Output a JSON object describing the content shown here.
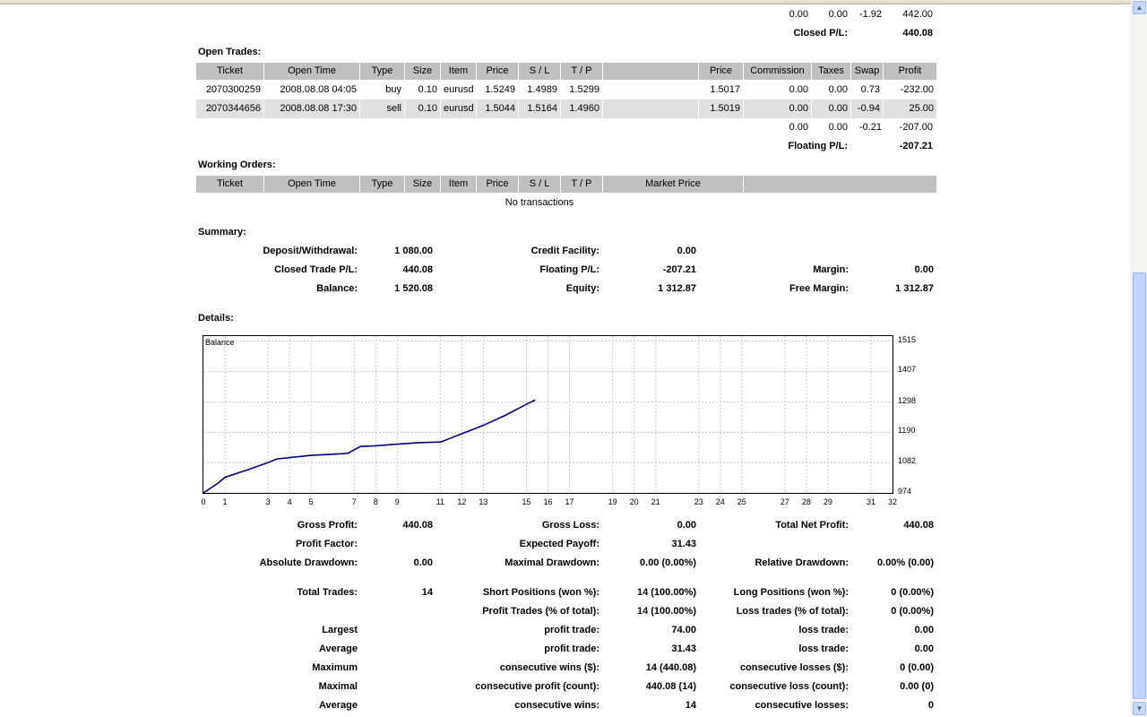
{
  "closed_totals": {
    "commission": "0.00",
    "taxes": "0.00",
    "swap": "-1.92",
    "profit": "442.00",
    "label": "Closed P/L:",
    "value": "440.08"
  },
  "open_trades": {
    "title": "Open Trades:",
    "headers": [
      "Ticket",
      "Open Time",
      "Type",
      "Size",
      "Item",
      "Price",
      "S / L",
      "T / P",
      "",
      "Price",
      "Commission",
      "Taxes",
      "Swap",
      "Profit"
    ],
    "rows": [
      [
        "2070300259",
        "2008.08.08 04:05",
        "buy",
        "0.10",
        "eurusd",
        "1.5249",
        "1.4989",
        "1.5299",
        "",
        "1.5017",
        "0.00",
        "0.00",
        "0.73",
        "-232.00"
      ],
      [
        "2070344656",
        "2008.08.08 17:30",
        "sell",
        "0.10",
        "eurusd",
        "1.5044",
        "1.5164",
        "1.4960",
        "",
        "1.5019",
        "0.00",
        "0.00",
        "-0.94",
        "25.00"
      ]
    ],
    "totals": {
      "commission": "0.00",
      "taxes": "0.00",
      "swap": "-0.21",
      "profit": "-207.00"
    },
    "floating_label": "Floating P/L:",
    "floating_value": "-207.21"
  },
  "working_orders": {
    "title": "Working Orders:",
    "headers": [
      "Ticket",
      "Open Time",
      "Type",
      "Size",
      "Item",
      "Price",
      "S / L",
      "T / P",
      "Market Price",
      ""
    ],
    "empty": "No transactions"
  },
  "summary": {
    "title": "Summary:",
    "rows": [
      [
        [
          "Deposit/Withdrawal:",
          "1 080.00"
        ],
        [
          "Credit Facility:",
          "0.00"
        ],
        [
          "",
          ""
        ]
      ],
      [
        [
          "Closed Trade P/L:",
          "440.08"
        ],
        [
          "Floating P/L:",
          "-207.21"
        ],
        [
          "Margin:",
          "0.00"
        ]
      ],
      [
        [
          "Balance:",
          "1 520.08"
        ],
        [
          "Equity:",
          "1 312.87"
        ],
        [
          "Free Margin:",
          "1 312.87"
        ]
      ]
    ]
  },
  "details": {
    "title": "Details:",
    "stats": [
      {
        "top": 586,
        "cells": [
          [
            "Gross Profit:",
            "440.08"
          ],
          [
            "Gross Loss:",
            "0.00"
          ],
          [
            "Total Net Profit:",
            "440.08"
          ]
        ]
      },
      {
        "top": 607,
        "cells": [
          [
            "Profit Factor:",
            ""
          ],
          [
            "Expected Payoff:",
            "31.43"
          ],
          [
            "",
            ""
          ]
        ]
      },
      {
        "top": 628,
        "cells": [
          [
            "Absolute Drawdown:",
            "0.00"
          ],
          [
            "Maximal Drawdown:",
            "0.00 (0.00%)"
          ],
          [
            "Relative Drawdown:",
            "0.00% (0.00)"
          ]
        ]
      },
      {
        "top": 661,
        "cells": [
          [
            "Total Trades:",
            "14"
          ],
          [
            "Short Positions (won %):",
            "14 (100.00%)"
          ],
          [
            "Long Positions (won %):",
            "0 (0.00%)"
          ]
        ]
      },
      {
        "top": 682,
        "cells": [
          [
            "",
            ""
          ],
          [
            "Profit Trades (% of total):",
            "14 (100.00%)"
          ],
          [
            "Loss trades (% of total):",
            "0 (0.00%)"
          ]
        ]
      },
      {
        "top": 703,
        "cells": [
          [
            "Largest",
            ""
          ],
          [
            "profit trade:",
            "74.00"
          ],
          [
            "loss trade:",
            "0.00"
          ]
        ]
      },
      {
        "top": 724,
        "cells": [
          [
            "Average",
            ""
          ],
          [
            "profit trade:",
            "31.43"
          ],
          [
            "loss trade:",
            "0.00"
          ]
        ]
      },
      {
        "top": 745,
        "cells": [
          [
            "Maximum",
            ""
          ],
          [
            "consecutive wins ($):",
            "14 (440.08)"
          ],
          [
            "consecutive losses ($):",
            "0 (0.00)"
          ]
        ]
      },
      {
        "top": 766,
        "cells": [
          [
            "Maximal",
            ""
          ],
          [
            "consecutive profit (count):",
            "440.08 (14)"
          ],
          [
            "consecutive loss (count):",
            "0.00 (0)"
          ]
        ]
      },
      {
        "top": 787,
        "cells": [
          [
            "Average",
            ""
          ],
          [
            "consecutive wins:",
            "14"
          ],
          [
            "consecutive losses:",
            "0"
          ]
        ]
      }
    ]
  },
  "chart_data": {
    "type": "line",
    "legend": "Balance",
    "x": [
      0,
      0.7,
      1,
      2,
      3,
      3.4,
      4,
      5,
      6,
      6.7,
      7.3,
      8,
      9,
      10,
      10.8,
      11,
      12,
      13,
      14,
      15,
      15.4
    ],
    "values": [
      974,
      1010,
      1030,
      1055,
      1082,
      1095,
      1100,
      1108,
      1112,
      1115,
      1140,
      1142,
      1148,
      1153,
      1155,
      1155,
      1185,
      1215,
      1250,
      1290,
      1305
    ],
    "xlim": [
      0,
      32
    ],
    "xticks": [
      0,
      1,
      3,
      4,
      5,
      7,
      8,
      9,
      11,
      12,
      13,
      15,
      16,
      17,
      19,
      20,
      21,
      23,
      24,
      25,
      27,
      28,
      29,
      31,
      32
    ],
    "ylim": [
      974,
      1533
    ],
    "yticks": [
      "1515",
      "1407",
      "1298",
      "1190",
      "1082",
      "974"
    ],
    "grid": true,
    "line_color": "#000080"
  }
}
